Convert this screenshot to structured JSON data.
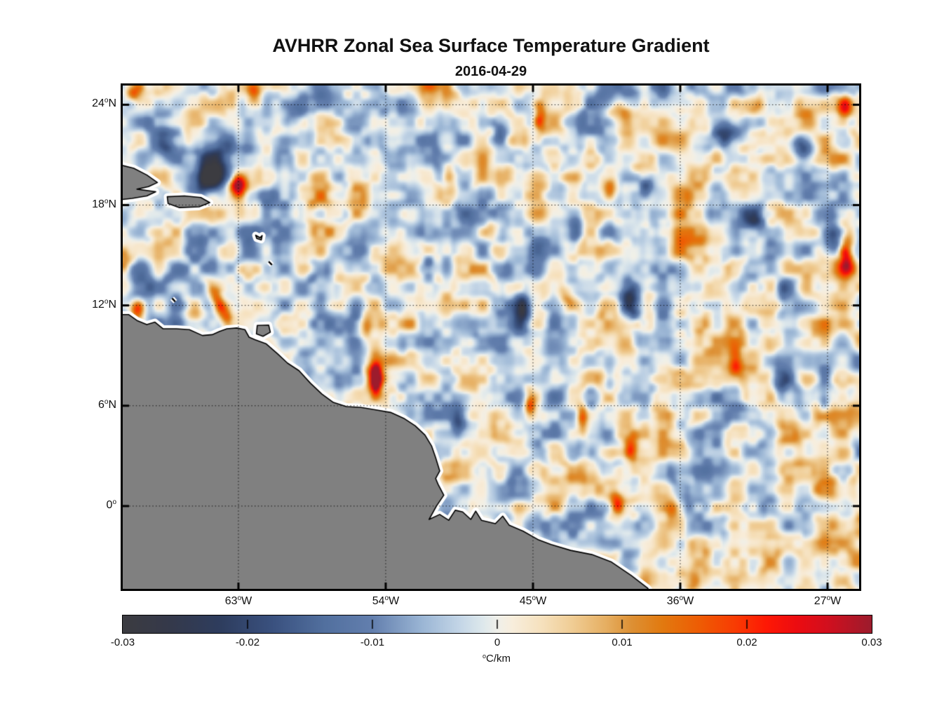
{
  "figure": {
    "background": "#ffffff"
  },
  "chart_data": {
    "type": "heatmap",
    "title": "AVHRR Zonal Sea Surface Temperature Gradient",
    "subtitle": "2016-04-29",
    "value_range": [
      -0.03,
      0.03
    ],
    "lon_range": [
      -70.07,
      -25.07
    ],
    "lat_range": [
      -4.95,
      25.15
    ],
    "grid": "dotted",
    "x_ticks": [
      {
        "lon": -63,
        "num": "63",
        "hemi": "W"
      },
      {
        "lon": -54,
        "num": "54",
        "hemi": "W"
      },
      {
        "lon": -45,
        "num": "45",
        "hemi": "W"
      },
      {
        "lon": -36,
        "num": "36",
        "hemi": "W"
      },
      {
        "lon": -27,
        "num": "27",
        "hemi": "W"
      }
    ],
    "y_ticks": [
      {
        "lat": 24,
        "num": "24",
        "hemi": "N"
      },
      {
        "lat": 18,
        "num": "18",
        "hemi": "N"
      },
      {
        "lat": 12,
        "num": "12",
        "hemi": "N"
      },
      {
        "lat": 6,
        "num": "6",
        "hemi": "N"
      },
      {
        "lat": 0,
        "num": "0",
        "hemi": ""
      }
    ],
    "colorbar": {
      "tick_values": [
        -0.03,
        -0.02,
        -0.01,
        0,
        0.01,
        0.02,
        0.03
      ],
      "tick_labels": [
        "-0.03",
        "-0.02",
        "-0.01",
        "0",
        "0.01",
        "0.02",
        "0.03"
      ],
      "unit_sup": "o",
      "unit_text": "C/km"
    },
    "colormap_stops": [
      [
        0.0,
        "#3c3c41"
      ],
      [
        0.06,
        "#35394a"
      ],
      [
        0.13,
        "#2e3d5e"
      ],
      [
        0.2,
        "#3a517f"
      ],
      [
        0.27,
        "#52709f"
      ],
      [
        0.333,
        "#637fae"
      ],
      [
        0.4,
        "#9bb6d5"
      ],
      [
        0.45,
        "#c4d6e7"
      ],
      [
        0.48,
        "#dde8ec"
      ],
      [
        0.5,
        "#f0f0ea"
      ],
      [
        0.52,
        "#f8eedd"
      ],
      [
        0.56,
        "#f6e1bd"
      ],
      [
        0.6,
        "#f0cd95"
      ],
      [
        0.645,
        "#e6af62"
      ],
      [
        0.68,
        "#dd9034"
      ],
      [
        0.72,
        "#e27a10"
      ],
      [
        0.77,
        "#ee5c04"
      ],
      [
        0.82,
        "#f93a03"
      ],
      [
        0.86,
        "#fe1805"
      ],
      [
        0.9,
        "#ec0c11"
      ],
      [
        0.94,
        "#d30f1e"
      ],
      [
        1.0,
        "#9c1c2d"
      ]
    ],
    "land": {
      "fill": "#808080",
      "outline": "#000000",
      "halo": "#ffffff"
    },
    "noise": {
      "seed": 1337,
      "octaves": [
        [
          1.1,
          0.0085
        ],
        [
          2.4,
          0.006
        ],
        [
          5.0,
          0.0035
        ],
        [
          0.55,
          0.004
        ]
      ],
      "bias": 0.0008
    },
    "features": [
      [
        -69.3,
        24.9,
        0.5,
        0.45,
        0,
        0.024
      ],
      [
        -62.1,
        24.7,
        0.35,
        0.55,
        0,
        0.018
      ],
      [
        -63.0,
        19.2,
        0.3,
        0.45,
        0,
        0.03
      ],
      [
        -63.0,
        19.2,
        0.6,
        0.85,
        0,
        0.012
      ],
      [
        -57.0,
        22.8,
        0.35,
        0.55,
        0,
        0.013
      ],
      [
        -50.1,
        19.7,
        0.35,
        0.6,
        0,
        0.017
      ],
      [
        -44.6,
        23.2,
        0.25,
        0.7,
        0,
        0.02
      ],
      [
        -39.9,
        23.7,
        0.4,
        0.4,
        0,
        0.012
      ],
      [
        -40.3,
        18.9,
        0.35,
        0.55,
        0,
        0.02
      ],
      [
        -31.5,
        24.0,
        0.4,
        0.4,
        0,
        0.012
      ],
      [
        -25.9,
        23.9,
        0.3,
        0.5,
        0,
        0.016
      ],
      [
        -25.9,
        14.9,
        0.3,
        0.8,
        0,
        0.026
      ],
      [
        -69.2,
        11.7,
        0.35,
        0.45,
        0,
        0.026
      ],
      [
        -70.0,
        14.8,
        0.3,
        0.7,
        0,
        0.02
      ],
      [
        -64.1,
        11.9,
        0.3,
        1.0,
        25,
        0.024
      ],
      [
        -55.3,
        10.7,
        0.3,
        0.6,
        0,
        0.016
      ],
      [
        -54.6,
        7.55,
        0.22,
        0.7,
        0,
        0.03
      ],
      [
        -54.6,
        7.55,
        0.5,
        1.1,
        0,
        0.012
      ],
      [
        -45.2,
        6.0,
        0.25,
        0.55,
        0,
        0.022
      ],
      [
        -42.0,
        5.1,
        0.25,
        0.6,
        0,
        0.018
      ],
      [
        -39.0,
        3.3,
        0.3,
        0.5,
        0,
        0.02
      ],
      [
        -39.9,
        0.0,
        0.3,
        0.55,
        0,
        0.02
      ],
      [
        -32.6,
        8.4,
        0.35,
        0.5,
        0,
        0.015
      ],
      [
        -35.1,
        -4.6,
        0.35,
        0.45,
        0,
        0.015
      ],
      [
        -36.4,
        -0.2,
        0.3,
        0.5,
        0,
        0.014
      ],
      [
        -47.5,
        16.5,
        0.3,
        0.5,
        0,
        0.013
      ],
      [
        -43.0,
        12.5,
        0.3,
        0.5,
        0,
        0.012
      ],
      [
        -64.3,
        20.6,
        0.9,
        1.0,
        0,
        -0.026
      ],
      [
        -65.0,
        19.3,
        0.8,
        0.6,
        0,
        -0.018
      ],
      [
        -67.6,
        21.6,
        0.5,
        0.6,
        0,
        -0.016
      ],
      [
        -59.6,
        23.3,
        0.4,
        0.5,
        0,
        -0.012
      ],
      [
        -33.0,
        22.3,
        0.6,
        0.5,
        0,
        -0.02
      ],
      [
        -28.5,
        21.4,
        0.5,
        0.6,
        0,
        -0.02
      ],
      [
        -38.1,
        19.1,
        0.35,
        0.45,
        0,
        -0.018
      ],
      [
        -26.6,
        16.0,
        0.5,
        0.7,
        0,
        -0.022
      ],
      [
        -39.0,
        12.2,
        0.5,
        0.9,
        0,
        -0.023
      ],
      [
        -47.0,
        22.4,
        0.3,
        0.5,
        0,
        -0.014
      ],
      [
        -45.6,
        11.8,
        0.3,
        0.6,
        0,
        -0.015
      ],
      [
        -49.5,
        5.1,
        0.35,
        0.65,
        0,
        -0.015
      ],
      [
        -42.4,
        16.4,
        0.3,
        0.55,
        0,
        -0.014
      ],
      [
        -31.5,
        17.2,
        0.45,
        0.6,
        0,
        -0.016
      ],
      [
        -51.4,
        14.3,
        0.3,
        0.5,
        0,
        -0.012
      ],
      [
        -29.6,
        13.0,
        0.4,
        0.5,
        0,
        -0.012
      ],
      [
        -30.0,
        7.5,
        0.45,
        0.5,
        0,
        -0.018
      ],
      [
        -27.2,
        6.3,
        0.3,
        0.5,
        0,
        -0.02
      ],
      [
        -40.3,
        7.3,
        0.3,
        0.5,
        0,
        -0.012
      ],
      [
        -41.4,
        3.1,
        0.3,
        0.5,
        0,
        -0.012
      ]
    ],
    "coastlines": {
      "mainland": [
        [
          -70.4,
          11.45
        ],
        [
          -69.7,
          11.45
        ],
        [
          -69.2,
          11.1
        ],
        [
          -68.6,
          10.85
        ],
        [
          -68.1,
          11.0
        ],
        [
          -67.6,
          10.6
        ],
        [
          -66.8,
          10.6
        ],
        [
          -66.0,
          10.55
        ],
        [
          -65.2,
          10.2
        ],
        [
          -64.6,
          10.25
        ],
        [
          -64.15,
          10.45
        ],
        [
          -63.7,
          10.6
        ],
        [
          -63.1,
          10.65
        ],
        [
          -62.6,
          10.55
        ],
        [
          -62.35,
          10.1
        ],
        [
          -62.0,
          9.95
        ],
        [
          -61.3,
          9.7
        ],
        [
          -60.6,
          9.1
        ],
        [
          -60.0,
          8.55
        ],
        [
          -59.3,
          8.1
        ],
        [
          -58.6,
          7.35
        ],
        [
          -57.9,
          6.7
        ],
        [
          -57.2,
          6.2
        ],
        [
          -56.4,
          5.95
        ],
        [
          -55.5,
          5.9
        ],
        [
          -54.6,
          5.75
        ],
        [
          -53.7,
          5.6
        ],
        [
          -52.9,
          5.25
        ],
        [
          -52.2,
          4.8
        ],
        [
          -51.6,
          4.25
        ],
        [
          -51.2,
          3.6
        ],
        [
          -50.95,
          2.9
        ],
        [
          -50.7,
          2.1
        ],
        [
          -50.95,
          1.65
        ],
        [
          -50.8,
          1.3
        ],
        [
          -50.45,
          0.65
        ],
        [
          -50.9,
          0.0
        ],
        [
          -51.35,
          -0.8
        ],
        [
          -50.7,
          -0.5
        ],
        [
          -50.15,
          -0.85
        ],
        [
          -49.75,
          -0.25
        ],
        [
          -49.3,
          -0.35
        ],
        [
          -48.8,
          -0.8
        ],
        [
          -48.5,
          -0.3
        ],
        [
          -48.15,
          -0.85
        ],
        [
          -47.3,
          -1.05
        ],
        [
          -46.85,
          -0.6
        ],
        [
          -46.45,
          -1.15
        ],
        [
          -45.6,
          -1.5
        ],
        [
          -44.7,
          -2.0
        ],
        [
          -43.9,
          -2.3
        ],
        [
          -42.7,
          -2.65
        ],
        [
          -41.4,
          -2.9
        ],
        [
          -40.2,
          -3.35
        ],
        [
          -39.0,
          -4.15
        ],
        [
          -38.0,
          -4.9
        ],
        [
          -37.55,
          -5.5
        ],
        [
          -70.4,
          -5.5
        ]
      ],
      "hispaniola": [
        [
          -70.4,
          20.45
        ],
        [
          -69.4,
          20.2
        ],
        [
          -68.6,
          19.8
        ],
        [
          -67.95,
          19.35
        ],
        [
          -68.5,
          19.1
        ],
        [
          -69.2,
          18.95
        ],
        [
          -68.05,
          18.8
        ],
        [
          -68.6,
          18.55
        ],
        [
          -69.5,
          18.4
        ],
        [
          -70.4,
          18.3
        ]
      ],
      "puerto_rico": [
        [
          -67.35,
          18.5
        ],
        [
          -66.3,
          18.55
        ],
        [
          -65.3,
          18.45
        ],
        [
          -64.75,
          18.15
        ],
        [
          -65.4,
          17.9
        ],
        [
          -66.6,
          17.85
        ],
        [
          -67.3,
          18.1
        ]
      ],
      "trinidad": [
        [
          -61.85,
          10.8
        ],
        [
          -61.15,
          10.82
        ],
        [
          -61.05,
          10.4
        ],
        [
          -61.5,
          10.15
        ],
        [
          -61.9,
          10.3
        ]
      ],
      "guadeloupe": [
        [
          -61.95,
          16.2
        ],
        [
          -61.68,
          16.05
        ],
        [
          -61.55,
          16.18
        ],
        [
          -61.6,
          15.92
        ],
        [
          -61.88,
          16.0
        ]
      ]
    },
    "islet_dashes": [
      [
        [
          -61.15,
          14.62
        ],
        [
          -60.95,
          14.42
        ]
      ],
      [
        [
          -67.05,
          12.42
        ],
        [
          -66.86,
          12.22
        ]
      ]
    ]
  }
}
